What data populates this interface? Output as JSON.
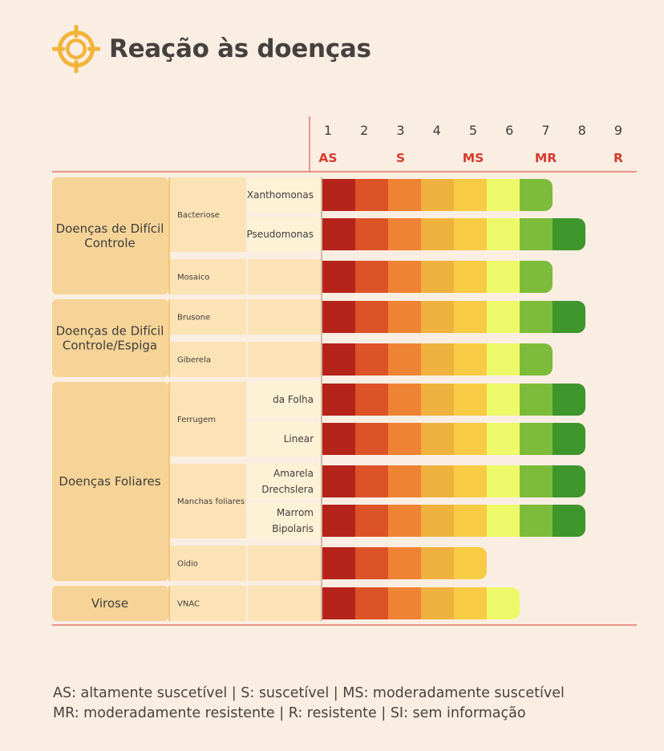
{
  "title": "Reação às doenças",
  "icon": "target-icon",
  "colors": {
    "background": "#faeee3",
    "group_box": "#f6d497",
    "sub_box": "#fbe3b6",
    "leaf_box": "#fdf1d6",
    "rule": "#d63a2e",
    "scale": [
      "#b5231b",
      "#dc5327",
      "#ef8334",
      "#f0b23f",
      "#f7cb44",
      "#eef96a",
      "#7dbb3a",
      "#3e962c",
      "#3e962c"
    ]
  },
  "chart_data": {
    "type": "bar",
    "scale_ticks": [
      "1",
      "2",
      "3",
      "4",
      "5",
      "6",
      "7",
      "8",
      "9"
    ],
    "scale_labels": [
      {
        "text": "AS",
        "at": 1
      },
      {
        "text": "S",
        "at": 3
      },
      {
        "text": "MS",
        "at": 5
      },
      {
        "text": "MR",
        "at": 7
      },
      {
        "text": "R",
        "at": 9
      }
    ],
    "groups": [
      {
        "label": [
          "Doenças de Difícil",
          "Controle"
        ],
        "subs": [
          {
            "label": "Bacteriose",
            "rows": [
              {
                "label": [
                  "Xanthomonas"
                ],
                "value": 7
              },
              {
                "label": [
                  "Pseudomonas"
                ],
                "value": 8
              }
            ]
          },
          {
            "label": "Mosaico",
            "rows": [
              {
                "label": [],
                "value": 7
              }
            ]
          }
        ]
      },
      {
        "label": [
          "Doenças de Difícil",
          "Controle/Espiga"
        ],
        "subs": [
          {
            "label": "Brusone",
            "rows": [
              {
                "label": [],
                "value": 8
              }
            ]
          },
          {
            "label": "Giberela",
            "rows": [
              {
                "label": [],
                "value": 7
              }
            ]
          }
        ]
      },
      {
        "label": [
          "Doenças Foliares"
        ],
        "subs": [
          {
            "label": "Ferrugem",
            "rows": [
              {
                "label": [
                  "da Folha"
                ],
                "value": 8
              },
              {
                "label": [
                  "Linear"
                ],
                "value": 8
              }
            ]
          },
          {
            "label": "Manchas foliares",
            "rows": [
              {
                "label": [
                  "Amarela",
                  "Drechslera"
                ],
                "value": 8
              },
              {
                "label": [
                  "Marrom",
                  "Bipolaris"
                ],
                "value": 8
              }
            ]
          },
          {
            "label": "Oídio",
            "rows": [
              {
                "label": [],
                "value": 5
              }
            ]
          }
        ]
      },
      {
        "label": [
          "Virose"
        ],
        "subs": [
          {
            "label": "VNAC",
            "rows": [
              {
                "label": [],
                "value": 6
              }
            ]
          }
        ]
      }
    ]
  },
  "legend": {
    "line1": "AS: altamente suscetível | S: suscetível | MS: moderadamente suscetível",
    "line2": "MR: moderadamente resistente | R: resistente | SI: sem informação"
  }
}
